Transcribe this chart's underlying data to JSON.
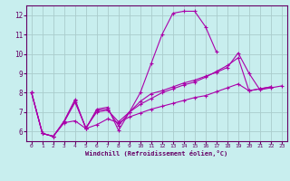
{
  "xlabel": "Windchill (Refroidissement éolien,°C)",
  "bg_color": "#c8eeee",
  "line_color": "#aa00aa",
  "grid_color": "#aacccc",
  "axis_color": "#660066",
  "xlim": [
    -0.5,
    23.5
  ],
  "ylim": [
    5.5,
    12.5
  ],
  "yticks": [
    6,
    7,
    8,
    9,
    10,
    11,
    12
  ],
  "xticks": [
    0,
    1,
    2,
    3,
    4,
    5,
    6,
    7,
    8,
    9,
    10,
    11,
    12,
    13,
    14,
    15,
    16,
    17,
    18,
    19,
    20,
    21,
    22,
    23
  ],
  "series": [
    [
      8.0,
      5.9,
      5.75,
      6.55,
      7.65,
      6.15,
      7.15,
      7.25,
      6.05,
      7.0,
      8.0,
      9.5,
      11.0,
      12.1,
      12.2,
      12.2,
      11.4,
      10.1
    ],
    [
      8.0,
      5.9,
      5.75,
      6.45,
      6.55,
      6.15,
      6.35,
      6.65,
      6.45,
      6.75,
      6.95,
      7.15,
      7.3,
      7.45,
      7.6,
      7.75,
      7.85,
      8.05,
      8.25,
      8.45,
      8.1,
      8.2,
      8.3
    ],
    [
      8.0,
      5.9,
      5.75,
      6.5,
      7.5,
      6.2,
      7.0,
      7.1,
      6.5,
      7.0,
      7.4,
      7.7,
      8.0,
      8.2,
      8.4,
      8.55,
      8.8,
      9.1,
      9.4,
      9.8,
      8.1,
      8.2,
      8.3
    ],
    [
      8.0,
      5.9,
      5.75,
      6.5,
      7.6,
      6.15,
      7.1,
      7.15,
      6.3,
      7.0,
      7.55,
      7.95,
      8.1,
      8.3,
      8.5,
      8.65,
      8.85,
      9.05,
      9.3,
      10.05,
      9.0,
      8.15,
      8.25,
      8.35
    ]
  ],
  "series_x": [
    [
      0,
      1,
      2,
      3,
      4,
      5,
      6,
      7,
      8,
      9,
      10,
      11,
      12,
      13,
      14,
      15,
      16,
      17
    ],
    [
      0,
      1,
      2,
      3,
      4,
      5,
      6,
      7,
      8,
      9,
      10,
      11,
      12,
      13,
      14,
      15,
      16,
      17,
      18,
      19,
      20,
      21,
      22
    ],
    [
      0,
      1,
      2,
      3,
      4,
      5,
      6,
      7,
      8,
      9,
      10,
      11,
      12,
      13,
      14,
      15,
      16,
      17,
      18,
      19,
      20,
      21,
      22
    ],
    [
      0,
      1,
      2,
      3,
      4,
      5,
      6,
      7,
      8,
      9,
      10,
      11,
      12,
      13,
      14,
      15,
      16,
      17,
      18,
      19,
      20,
      21,
      22,
      23
    ]
  ]
}
